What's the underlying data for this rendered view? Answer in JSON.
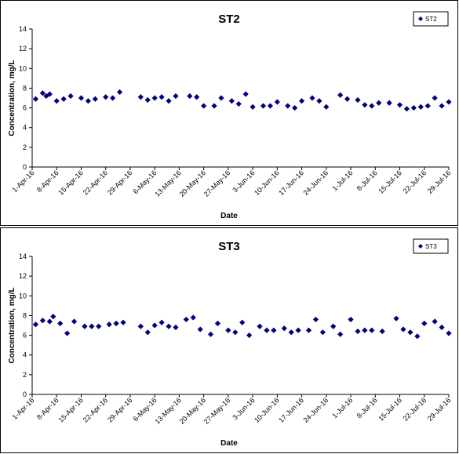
{
  "charts": [
    {
      "chart_data": {
        "type": "scatter",
        "title": "ST2",
        "xlabel": "Date",
        "ylabel": "Concentration, mg/L",
        "ylim": [
          0,
          14
        ],
        "yticks": [
          "0",
          "2",
          "4",
          "6",
          "8",
          "10",
          "12",
          "14"
        ],
        "x_range": [
          "2016-04-01",
          "2016-07-29"
        ],
        "xtick_labels": [
          "1-Apr-16",
          "8-Apr-16",
          "15-Apr-16",
          "22-Apr-16",
          "29-Apr-16",
          "6-May-16",
          "13-May-16",
          "20-May-16",
          "27-May-16",
          "3-Jun-16",
          "10-Jun-16",
          "17-Jun-16",
          "24-Jun-16",
          "1-Jul-16",
          "8-Jul-16",
          "15-Jul-16",
          "22-Jul-16",
          "29-Jul-16"
        ],
        "grid": false,
        "legend_position": "top-right",
        "series": [
          {
            "name": "ST2",
            "color": "#000080",
            "marker": "diamond",
            "points": [
              [
                "2016-04-02",
                6.9
              ],
              [
                "2016-04-04",
                7.5
              ],
              [
                "2016-04-05",
                7.2
              ],
              [
                "2016-04-06",
                7.4
              ],
              [
                "2016-04-08",
                6.7
              ],
              [
                "2016-04-10",
                6.9
              ],
              [
                "2016-04-12",
                7.2
              ],
              [
                "2016-04-15",
                7.0
              ],
              [
                "2016-04-17",
                6.7
              ],
              [
                "2016-04-19",
                6.9
              ],
              [
                "2016-04-22",
                7.1
              ],
              [
                "2016-04-24",
                7.0
              ],
              [
                "2016-04-26",
                7.6
              ],
              [
                "2016-05-02",
                7.1
              ],
              [
                "2016-05-04",
                6.8
              ],
              [
                "2016-05-06",
                7.0
              ],
              [
                "2016-05-08",
                7.1
              ],
              [
                "2016-05-10",
                6.7
              ],
              [
                "2016-05-12",
                7.2
              ],
              [
                "2016-05-16",
                7.2
              ],
              [
                "2016-05-18",
                7.1
              ],
              [
                "2016-05-20",
                6.2
              ],
              [
                "2016-05-23",
                6.2
              ],
              [
                "2016-05-25",
                7.0
              ],
              [
                "2016-05-28",
                6.7
              ],
              [
                "2016-05-30",
                6.4
              ],
              [
                "2016-06-01",
                7.4
              ],
              [
                "2016-06-03",
                6.1
              ],
              [
                "2016-06-06",
                6.2
              ],
              [
                "2016-06-08",
                6.2
              ],
              [
                "2016-06-10",
                6.6
              ],
              [
                "2016-06-13",
                6.2
              ],
              [
                "2016-06-15",
                6.0
              ],
              [
                "2016-06-17",
                6.7
              ],
              [
                "2016-06-20",
                7.0
              ],
              [
                "2016-06-22",
                6.7
              ],
              [
                "2016-06-24",
                6.1
              ],
              [
                "2016-06-28",
                7.3
              ],
              [
                "2016-06-30",
                6.9
              ],
              [
                "2016-07-03",
                6.8
              ],
              [
                "2016-07-05",
                6.3
              ],
              [
                "2016-07-07",
                6.2
              ],
              [
                "2016-07-09",
                6.5
              ],
              [
                "2016-07-12",
                6.5
              ],
              [
                "2016-07-15",
                6.3
              ],
              [
                "2016-07-17",
                5.9
              ],
              [
                "2016-07-19",
                6.0
              ],
              [
                "2016-07-21",
                6.1
              ],
              [
                "2016-07-23",
                6.2
              ],
              [
                "2016-07-25",
                7.0
              ],
              [
                "2016-07-27",
                6.2
              ],
              [
                "2016-07-29",
                6.6
              ]
            ]
          }
        ]
      }
    },
    {
      "chart_data": {
        "type": "scatter",
        "title": "ST3",
        "xlabel": "Date",
        "ylabel": "Concentration, mg/L",
        "ylim": [
          0,
          14
        ],
        "yticks": [
          "0",
          "2",
          "4",
          "6",
          "8",
          "10",
          "12",
          "14"
        ],
        "x_range": [
          "2016-04-01",
          "2016-07-29"
        ],
        "xtick_labels": [
          "1-Apr-16",
          "8-Apr-16",
          "15-Apr-16",
          "22-Apr-16",
          "29-Apr-16",
          "6-May-16",
          "13-May-16",
          "20-May-16",
          "27-May-16",
          "3-Jun-16",
          "10-Jun-16",
          "17-Jun-16",
          "24-Jun-16",
          "1-Jul-16",
          "8-Jul-16",
          "15-Jul-16",
          "22-Jul-16",
          "29-Jul-16"
        ],
        "grid": false,
        "legend_position": "top-right",
        "series": [
          {
            "name": "ST3",
            "color": "#000080",
            "marker": "diamond",
            "points": [
              [
                "2016-04-02",
                7.1
              ],
              [
                "2016-04-04",
                7.5
              ],
              [
                "2016-04-06",
                7.4
              ],
              [
                "2016-04-07",
                7.9
              ],
              [
                "2016-04-09",
                7.2
              ],
              [
                "2016-04-11",
                6.2
              ],
              [
                "2016-04-13",
                7.4
              ],
              [
                "2016-04-16",
                6.9
              ],
              [
                "2016-04-18",
                6.9
              ],
              [
                "2016-04-20",
                6.9
              ],
              [
                "2016-04-23",
                7.1
              ],
              [
                "2016-04-25",
                7.2
              ],
              [
                "2016-04-27",
                7.3
              ],
              [
                "2016-05-02",
                6.9
              ],
              [
                "2016-05-04",
                6.3
              ],
              [
                "2016-05-06",
                7.0
              ],
              [
                "2016-05-08",
                7.3
              ],
              [
                "2016-05-10",
                6.9
              ],
              [
                "2016-05-12",
                6.8
              ],
              [
                "2016-05-15",
                7.6
              ],
              [
                "2016-05-17",
                7.8
              ],
              [
                "2016-05-19",
                6.6
              ],
              [
                "2016-05-22",
                6.1
              ],
              [
                "2016-05-24",
                7.2
              ],
              [
                "2016-05-27",
                6.5
              ],
              [
                "2016-05-29",
                6.3
              ],
              [
                "2016-05-31",
                7.3
              ],
              [
                "2016-06-02",
                6.0
              ],
              [
                "2016-06-05",
                6.9
              ],
              [
                "2016-06-07",
                6.5
              ],
              [
                "2016-06-09",
                6.5
              ],
              [
                "2016-06-12",
                6.7
              ],
              [
                "2016-06-14",
                6.3
              ],
              [
                "2016-06-16",
                6.5
              ],
              [
                "2016-06-19",
                6.5
              ],
              [
                "2016-06-21",
                7.6
              ],
              [
                "2016-06-23",
                6.3
              ],
              [
                "2016-06-26",
                6.9
              ],
              [
                "2016-06-28",
                6.1
              ],
              [
                "2016-07-01",
                7.6
              ],
              [
                "2016-07-03",
                6.4
              ],
              [
                "2016-07-05",
                6.5
              ],
              [
                "2016-07-07",
                6.5
              ],
              [
                "2016-07-10",
                6.4
              ],
              [
                "2016-07-14",
                7.7
              ],
              [
                "2016-07-16",
                6.6
              ],
              [
                "2016-07-18",
                6.3
              ],
              [
                "2016-07-20",
                5.9
              ],
              [
                "2016-07-22",
                7.2
              ],
              [
                "2016-07-25",
                7.4
              ],
              [
                "2016-07-27",
                6.8
              ],
              [
                "2016-07-29",
                6.2
              ]
            ]
          }
        ]
      }
    }
  ]
}
